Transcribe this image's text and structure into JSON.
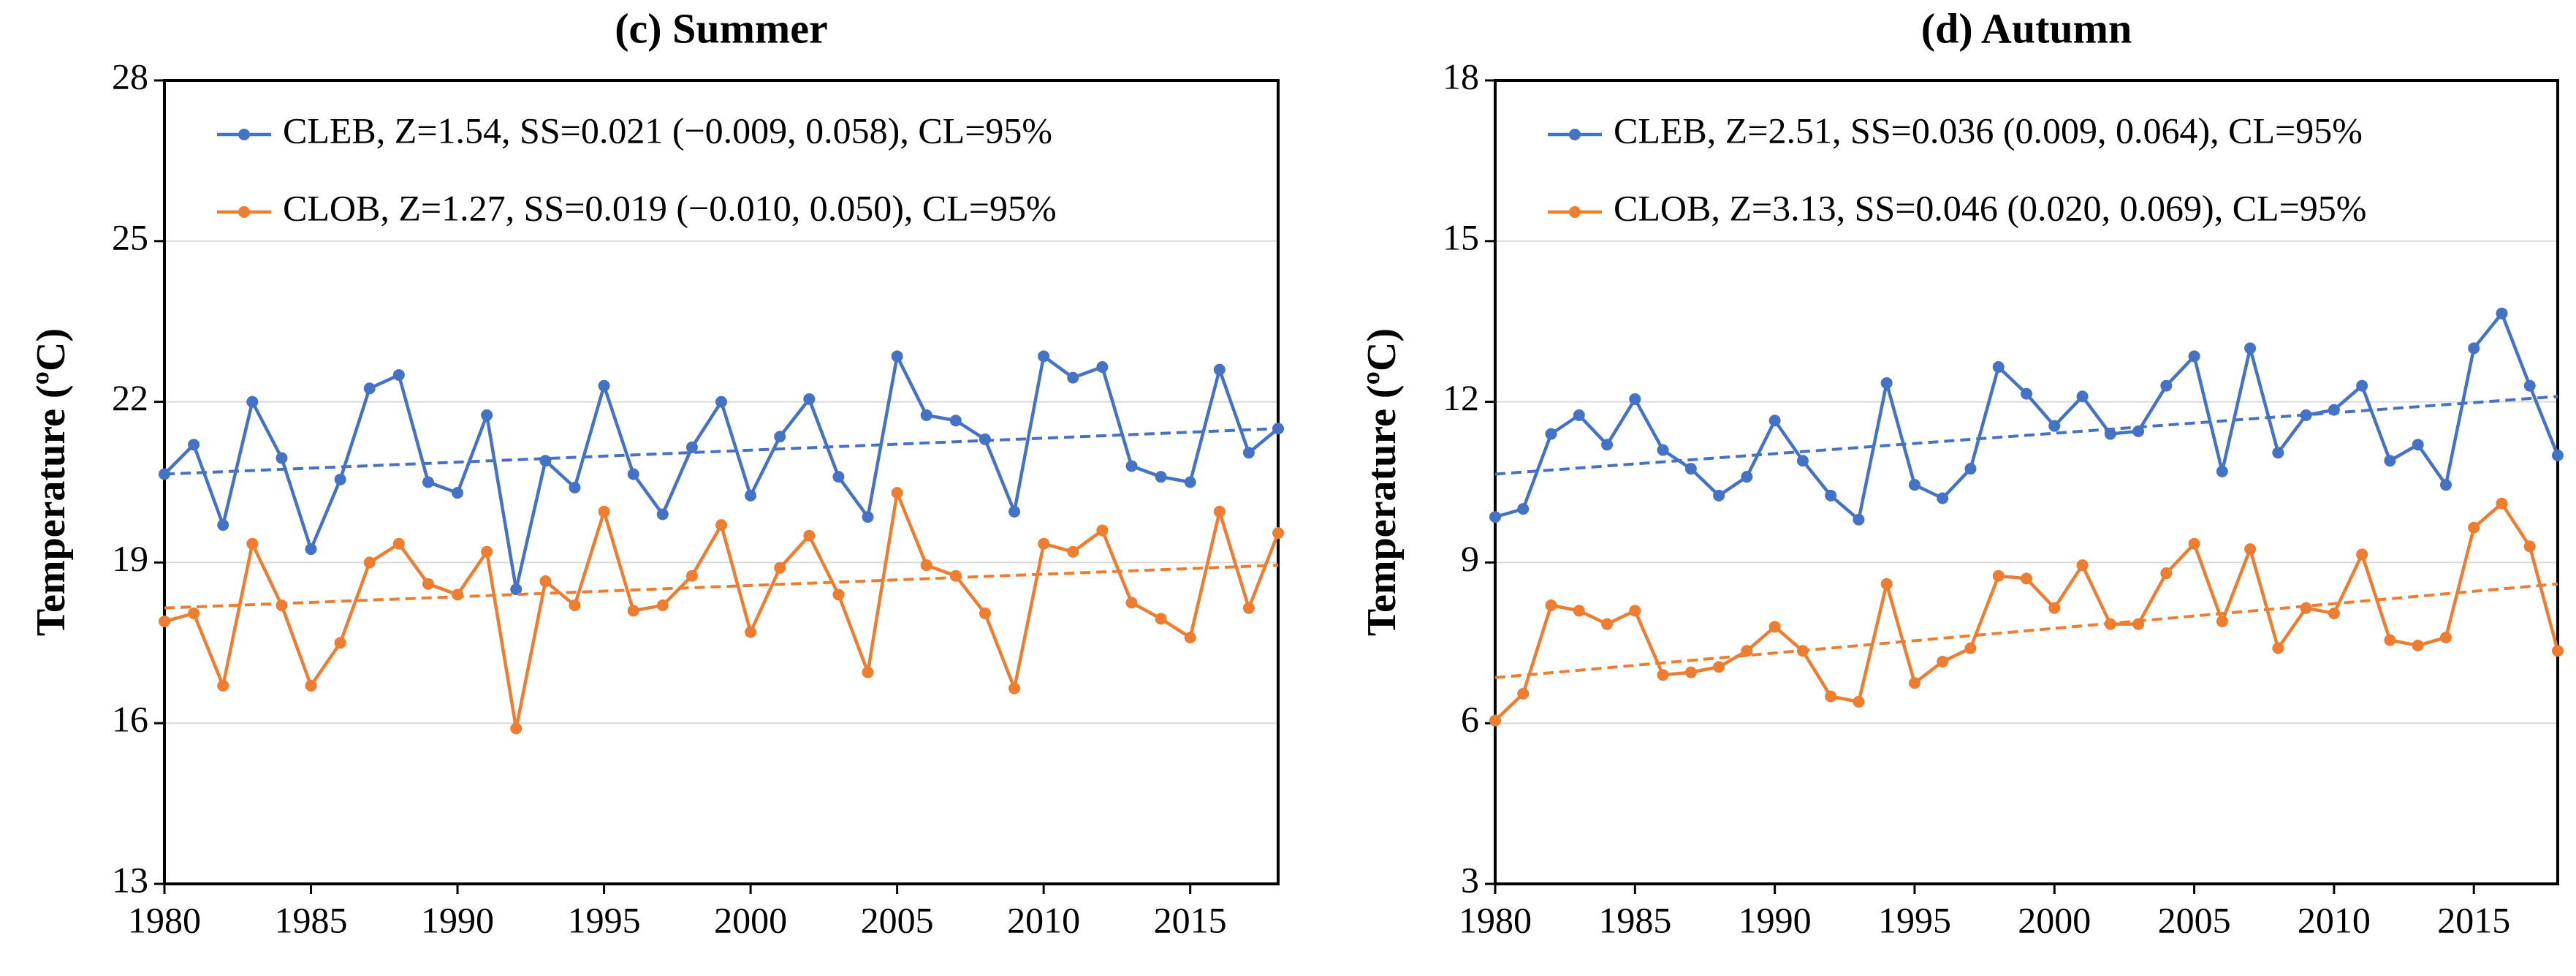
{
  "chart_data": [
    {
      "type": "line",
      "title": "(c) Summer",
      "y_label": "Temperature (ºC)",
      "x": [
        1980,
        1981,
        1982,
        1983,
        1984,
        1985,
        1986,
        1987,
        1988,
        1989,
        1990,
        1991,
        1992,
        1993,
        1994,
        1995,
        1996,
        1997,
        1998,
        1999,
        2000,
        2001,
        2002,
        2003,
        2004,
        2005,
        2006,
        2007,
        2008,
        2009,
        2010,
        2011,
        2012,
        2013,
        2014,
        2015,
        2016,
        2017,
        2018
      ],
      "xlim": [
        1980,
        2018
      ],
      "xticks": [
        1980,
        1985,
        1990,
        1995,
        2000,
        2005,
        2010,
        2015
      ],
      "ylim": [
        13,
        28
      ],
      "yticks": [
        13,
        16,
        19,
        22,
        25,
        28
      ],
      "grid": true,
      "series": [
        {
          "name": "CLEB, Z=1.54, SS=0.021 (−0.009, 0.058), CL=95%",
          "color": "#4472c4",
          "values": [
            20.65,
            21.2,
            19.7,
            22.0,
            20.95,
            19.25,
            20.55,
            22.25,
            22.5,
            20.5,
            20.3,
            21.75,
            18.5,
            20.9,
            20.4,
            22.3,
            20.65,
            19.9,
            21.15,
            22.0,
            20.25,
            21.35,
            22.05,
            20.6,
            19.85,
            22.85,
            21.75,
            21.65,
            21.3,
            19.95,
            22.85,
            22.45,
            22.65,
            20.8,
            20.6,
            20.5,
            22.6,
            21.05,
            21.5
          ],
          "trend": [
            20.65,
            21.5
          ]
        },
        {
          "name": "CLOB, Z=1.27, SS=0.019 (−0.010, 0.050), CL=95%",
          "color": "#ed7d31",
          "values": [
            17.9,
            18.05,
            16.7,
            19.35,
            18.2,
            16.7,
            17.5,
            19.0,
            19.35,
            18.6,
            18.4,
            19.2,
            15.9,
            18.65,
            18.2,
            19.95,
            18.1,
            18.2,
            18.75,
            19.7,
            17.7,
            18.9,
            19.5,
            18.4,
            16.95,
            20.3,
            18.95,
            18.75,
            18.05,
            16.65,
            19.35,
            19.2,
            19.6,
            18.25,
            17.95,
            17.6,
            19.95,
            18.15,
            19.55
          ],
          "trend": [
            18.15,
            18.95
          ]
        }
      ]
    },
    {
      "type": "line",
      "title": "(d) Autumn",
      "y_label": "Temperature (ºC)",
      "x": [
        1980,
        1981,
        1982,
        1983,
        1984,
        1985,
        1986,
        1987,
        1988,
        1989,
        1990,
        1991,
        1992,
        1993,
        1994,
        1995,
        1996,
        1997,
        1998,
        1999,
        2000,
        2001,
        2002,
        2003,
        2004,
        2005,
        2006,
        2007,
        2008,
        2009,
        2010,
        2011,
        2012,
        2013,
        2014,
        2015,
        2016,
        2017,
        2018
      ],
      "xlim": [
        1980,
        2018
      ],
      "xticks": [
        1980,
        1985,
        1990,
        1995,
        2000,
        2005,
        2010,
        2015
      ],
      "ylim": [
        3,
        18
      ],
      "yticks": [
        3,
        6,
        9,
        12,
        15,
        18
      ],
      "grid": true,
      "series": [
        {
          "name": "CLEB, Z=2.51, SS=0.036 (0.009, 0.064), CL=95%",
          "color": "#4472c4",
          "values": [
            9.85,
            10.0,
            11.4,
            11.75,
            11.2,
            12.05,
            11.1,
            10.75,
            10.25,
            10.6,
            11.65,
            10.9,
            10.25,
            9.8,
            12.35,
            10.45,
            10.2,
            10.75,
            12.65,
            12.15,
            11.55,
            12.1,
            11.4,
            11.45,
            12.3,
            12.85,
            10.7,
            13.0,
            11.05,
            11.75,
            11.85,
            12.3,
            10.9,
            11.2,
            10.45,
            13.0,
            13.65,
            12.3,
            11.0
          ],
          "trend": [
            10.65,
            12.1
          ]
        },
        {
          "name": "CLOB, Z=3.13, SS=0.046 (0.020, 0.069), CL=95%",
          "color": "#ed7d31",
          "values": [
            6.05,
            6.55,
            8.2,
            8.1,
            7.85,
            8.1,
            6.9,
            6.95,
            7.05,
            7.35,
            7.8,
            7.35,
            6.5,
            6.4,
            8.6,
            6.75,
            7.15,
            7.4,
            8.75,
            8.7,
            8.15,
            8.95,
            7.85,
            7.85,
            8.8,
            9.35,
            7.9,
            9.25,
            7.4,
            8.15,
            8.05,
            9.15,
            7.55,
            7.45,
            7.6,
            9.65,
            10.1,
            9.3,
            7.35
          ],
          "trend": [
            6.85,
            8.6
          ]
        }
      ]
    }
  ]
}
